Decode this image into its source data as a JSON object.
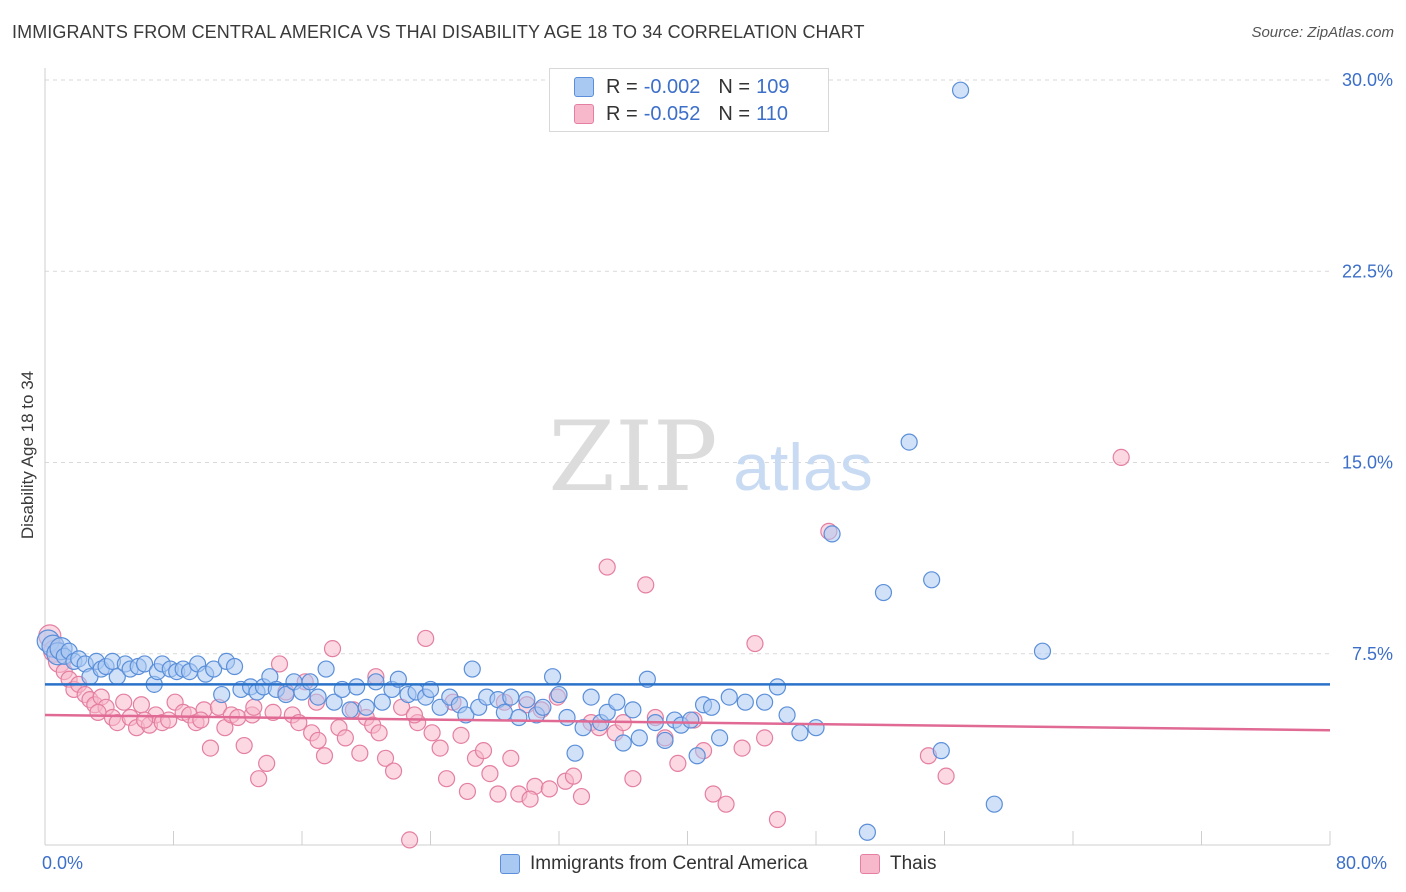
{
  "header": {
    "title": "IMMIGRANTS FROM CENTRAL AMERICA VS THAI DISABILITY AGE 18 TO 34 CORRELATION CHART",
    "source": "Source: ZipAtlas.com"
  },
  "colors": {
    "blue_fill": "#a9c8f2",
    "blue_stroke": "#5b8fd9",
    "blue_line": "#2a72c9",
    "pink_fill": "#f7b8cb",
    "pink_stroke": "#e47fa1",
    "pink_line": "#e06a94",
    "grid": "#d9d9d9",
    "axis_text": "#3c6fc9"
  },
  "legend": {
    "blue": {
      "r_label": "R = ",
      "r_value": "-0.002",
      "n_label": "N = ",
      "n_value": "109"
    },
    "pink": {
      "r_label": "R = ",
      "r_value": "-0.052",
      "n_label": "N = ",
      "n_value": "110"
    }
  },
  "bottom_legend": {
    "blue_label": "Immigrants from Central America",
    "pink_label": "Thais"
  },
  "watermark": {
    "zip": "ZIP",
    "atlas": "atlas"
  },
  "chart_data": {
    "type": "scatter",
    "title": "IMMIGRANTS FROM CENTRAL AMERICA VS THAI DISABILITY AGE 18 TO 34 CORRELATION CHART",
    "xlabel": "",
    "ylabel": "Disability Age 18 to 34",
    "xlim": [
      0,
      80
    ],
    "ylim": [
      0,
      30
    ],
    "x_tick_labels": [
      "0.0%",
      "80.0%"
    ],
    "y_ticks": [
      7.5,
      15.0,
      22.5,
      30.0
    ],
    "y_tick_labels": [
      "7.5%",
      "15.0%",
      "22.5%",
      "30.0%"
    ],
    "grid": true,
    "legend_position": "top-center",
    "series": [
      {
        "name": "Immigrants from Central America",
        "color": "#a9c8f2",
        "trend": {
          "x": [
            0,
            80
          ],
          "y": [
            6.3,
            6.3
          ]
        },
        "points": [
          [
            0.2,
            8.0
          ],
          [
            0.5,
            7.8
          ],
          [
            0.8,
            7.5
          ],
          [
            1.0,
            7.7
          ],
          [
            1.2,
            7.4
          ],
          [
            1.5,
            7.6
          ],
          [
            1.8,
            7.2
          ],
          [
            2.1,
            7.3
          ],
          [
            2.5,
            7.1
          ],
          [
            2.8,
            6.6
          ],
          [
            3.2,
            7.2
          ],
          [
            3.5,
            6.9
          ],
          [
            3.8,
            7.0
          ],
          [
            4.2,
            7.2
          ],
          [
            4.5,
            6.6
          ],
          [
            5.0,
            7.1
          ],
          [
            5.3,
            6.9
          ],
          [
            5.8,
            7.0
          ],
          [
            6.2,
            7.1
          ],
          [
            6.8,
            6.3
          ],
          [
            7.0,
            6.8
          ],
          [
            7.3,
            7.1
          ],
          [
            7.8,
            6.9
          ],
          [
            8.2,
            6.8
          ],
          [
            8.6,
            6.9
          ],
          [
            9.0,
            6.8
          ],
          [
            9.5,
            7.1
          ],
          [
            10.0,
            6.7
          ],
          [
            10.5,
            6.9
          ],
          [
            11.0,
            5.9
          ],
          [
            11.3,
            7.2
          ],
          [
            11.8,
            7.0
          ],
          [
            12.2,
            6.1
          ],
          [
            12.8,
            6.2
          ],
          [
            13.2,
            6.0
          ],
          [
            13.6,
            6.2
          ],
          [
            14.0,
            6.6
          ],
          [
            14.4,
            6.1
          ],
          [
            15.0,
            5.9
          ],
          [
            15.5,
            6.4
          ],
          [
            16.0,
            6.0
          ],
          [
            16.5,
            6.4
          ],
          [
            17.0,
            5.8
          ],
          [
            17.5,
            6.9
          ],
          [
            18.0,
            5.6
          ],
          [
            18.5,
            6.1
          ],
          [
            19.0,
            5.3
          ],
          [
            19.4,
            6.2
          ],
          [
            20.0,
            5.4
          ],
          [
            20.6,
            6.4
          ],
          [
            21.0,
            5.6
          ],
          [
            21.6,
            6.1
          ],
          [
            22.0,
            6.5
          ],
          [
            22.6,
            5.9
          ],
          [
            23.1,
            6.0
          ],
          [
            23.7,
            5.8
          ],
          [
            24.0,
            6.1
          ],
          [
            24.6,
            5.4
          ],
          [
            25.2,
            5.8
          ],
          [
            25.8,
            5.5
          ],
          [
            26.2,
            5.1
          ],
          [
            26.6,
            6.9
          ],
          [
            27.0,
            5.4
          ],
          [
            27.5,
            5.8
          ],
          [
            28.2,
            5.7
          ],
          [
            28.6,
            5.2
          ],
          [
            29.0,
            5.8
          ],
          [
            29.5,
            5.0
          ],
          [
            30.0,
            5.7
          ],
          [
            30.6,
            5.1
          ],
          [
            31.0,
            5.4
          ],
          [
            31.6,
            6.6
          ],
          [
            32.0,
            5.9
          ],
          [
            32.5,
            5.0
          ],
          [
            33.0,
            3.6
          ],
          [
            33.5,
            4.6
          ],
          [
            34.0,
            5.8
          ],
          [
            34.6,
            4.8
          ],
          [
            35.0,
            5.2
          ],
          [
            35.6,
            5.6
          ],
          [
            36.0,
            4.0
          ],
          [
            36.6,
            5.3
          ],
          [
            37.0,
            4.2
          ],
          [
            37.5,
            6.5
          ],
          [
            38.0,
            4.8
          ],
          [
            38.6,
            4.1
          ],
          [
            39.2,
            4.9
          ],
          [
            39.6,
            4.7
          ],
          [
            40.2,
            4.9
          ],
          [
            40.6,
            3.5
          ],
          [
            41.0,
            5.5
          ],
          [
            41.5,
            5.4
          ],
          [
            42.0,
            4.2
          ],
          [
            42.6,
            5.8
          ],
          [
            43.6,
            5.6
          ],
          [
            44.8,
            5.6
          ],
          [
            45.6,
            6.2
          ],
          [
            46.2,
            5.1
          ],
          [
            47.0,
            4.4
          ],
          [
            48.0,
            4.6
          ],
          [
            49.0,
            12.2
          ],
          [
            52.2,
            9.9
          ],
          [
            53.8,
            15.8
          ],
          [
            55.2,
            10.4
          ],
          [
            55.8,
            3.7
          ],
          [
            59.1,
            1.6
          ],
          [
            62.1,
            7.6
          ],
          [
            57.0,
            29.6
          ],
          [
            51.2,
            0.5
          ]
        ]
      },
      {
        "name": "Thais",
        "color": "#f7b8cb",
        "trend": {
          "x": [
            0,
            80
          ],
          "y": [
            5.1,
            4.5
          ]
        },
        "points": [
          [
            0.3,
            8.2
          ],
          [
            0.6,
            7.6
          ],
          [
            0.9,
            7.2
          ],
          [
            1.2,
            6.8
          ],
          [
            1.5,
            6.5
          ],
          [
            1.8,
            6.1
          ],
          [
            2.1,
            6.3
          ],
          [
            2.5,
            5.9
          ],
          [
            2.8,
            5.7
          ],
          [
            3.1,
            5.5
          ],
          [
            3.5,
            5.8
          ],
          [
            3.8,
            5.4
          ],
          [
            4.2,
            5.0
          ],
          [
            4.5,
            4.8
          ],
          [
            4.9,
            5.6
          ],
          [
            5.3,
            5.0
          ],
          [
            5.7,
            4.6
          ],
          [
            6.0,
            5.5
          ],
          [
            6.5,
            4.7
          ],
          [
            6.9,
            5.1
          ],
          [
            7.3,
            4.8
          ],
          [
            7.7,
            4.9
          ],
          [
            8.1,
            5.6
          ],
          [
            8.6,
            5.2
          ],
          [
            9.0,
            5.1
          ],
          [
            9.4,
            4.8
          ],
          [
            9.9,
            5.3
          ],
          [
            10.3,
            3.8
          ],
          [
            10.8,
            5.4
          ],
          [
            11.2,
            4.6
          ],
          [
            11.6,
            5.1
          ],
          [
            12.0,
            5.0
          ],
          [
            12.4,
            3.9
          ],
          [
            12.9,
            5.1
          ],
          [
            13.3,
            2.6
          ],
          [
            13.8,
            3.2
          ],
          [
            14.2,
            5.2
          ],
          [
            14.6,
            7.1
          ],
          [
            15.0,
            6.0
          ],
          [
            15.4,
            5.1
          ],
          [
            15.8,
            4.8
          ],
          [
            16.2,
            6.4
          ],
          [
            16.6,
            4.4
          ],
          [
            17.0,
            4.1
          ],
          [
            17.4,
            3.5
          ],
          [
            17.9,
            7.7
          ],
          [
            18.3,
            4.6
          ],
          [
            18.7,
            4.2
          ],
          [
            19.2,
            5.3
          ],
          [
            19.6,
            3.6
          ],
          [
            20.0,
            5.0
          ],
          [
            20.4,
            4.7
          ],
          [
            20.8,
            4.4
          ],
          [
            21.2,
            3.4
          ],
          [
            21.7,
            2.9
          ],
          [
            22.2,
            5.4
          ],
          [
            22.7,
            0.2
          ],
          [
            23.2,
            4.8
          ],
          [
            23.7,
            8.1
          ],
          [
            24.1,
            4.4
          ],
          [
            24.6,
            3.8
          ],
          [
            25.0,
            2.6
          ],
          [
            25.4,
            5.6
          ],
          [
            25.9,
            4.3
          ],
          [
            26.3,
            2.1
          ],
          [
            26.8,
            3.4
          ],
          [
            27.3,
            3.7
          ],
          [
            27.7,
            2.8
          ],
          [
            28.2,
            2.0
          ],
          [
            28.6,
            5.6
          ],
          [
            29.0,
            3.4
          ],
          [
            29.5,
            2.0
          ],
          [
            30.0,
            5.5
          ],
          [
            30.5,
            2.3
          ],
          [
            30.9,
            5.3
          ],
          [
            31.4,
            2.2
          ],
          [
            31.9,
            5.8
          ],
          [
            32.4,
            2.5
          ],
          [
            32.9,
            2.7
          ],
          [
            33.4,
            1.9
          ],
          [
            34.0,
            4.8
          ],
          [
            34.5,
            4.6
          ],
          [
            35.0,
            10.9
          ],
          [
            35.5,
            4.4
          ],
          [
            36.0,
            4.8
          ],
          [
            37.4,
            10.2
          ],
          [
            38.0,
            5.0
          ],
          [
            38.6,
            4.2
          ],
          [
            39.4,
            3.2
          ],
          [
            40.4,
            4.9
          ],
          [
            41.0,
            3.7
          ],
          [
            41.6,
            2.0
          ],
          [
            42.4,
            1.6
          ],
          [
            43.4,
            3.8
          ],
          [
            44.2,
            7.9
          ],
          [
            44.8,
            4.2
          ],
          [
            45.6,
            1.0
          ],
          [
            48.8,
            12.3
          ],
          [
            55.0,
            3.5
          ],
          [
            56.1,
            2.7
          ],
          [
            67.0,
            15.2
          ],
          [
            30.2,
            1.8
          ],
          [
            36.6,
            2.6
          ],
          [
            20.6,
            6.6
          ],
          [
            13.0,
            5.4
          ],
          [
            16.9,
            5.6
          ],
          [
            9.7,
            4.9
          ],
          [
            6.2,
            4.9
          ],
          [
            3.3,
            5.2
          ],
          [
            23.0,
            5.1
          ]
        ]
      }
    ]
  }
}
